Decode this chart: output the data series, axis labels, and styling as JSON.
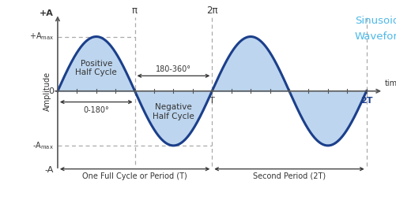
{
  "title_line1": "Sinusoidal",
  "title_line2": "Waveform",
  "title_color": "#4db8e8",
  "bg_color": "#ffffff",
  "wave_color": "#1b3f8b",
  "wave_fill_color": "#bdd5ee",
  "wave_linewidth": 2.2,
  "axis_color": "#555555",
  "dashed_color": "#aaaaaa",
  "text_color": "#333333",
  "arrow_color": "#333333",
  "label_amplitude": "Amplitude",
  "label_time": "time",
  "label_plus_A": "+A",
  "label_minus_A": "-A",
  "label_plus_Amax": "+Amax",
  "label_minus_Amax": "-Amax",
  "label_pi": "π",
  "label_2pi": "2π",
  "label_T": "T",
  "label_2T": "2T",
  "label_0": "0",
  "label_0_180": "0-180°",
  "label_180_360": "180-360°",
  "label_pos_half": "Positive\nHalf Cycle",
  "label_neg_half": "Negative\nHalf Cycle",
  "label_one_period": "One Full Cycle or Period (T)",
  "label_second_period": "Second Period (2T)"
}
